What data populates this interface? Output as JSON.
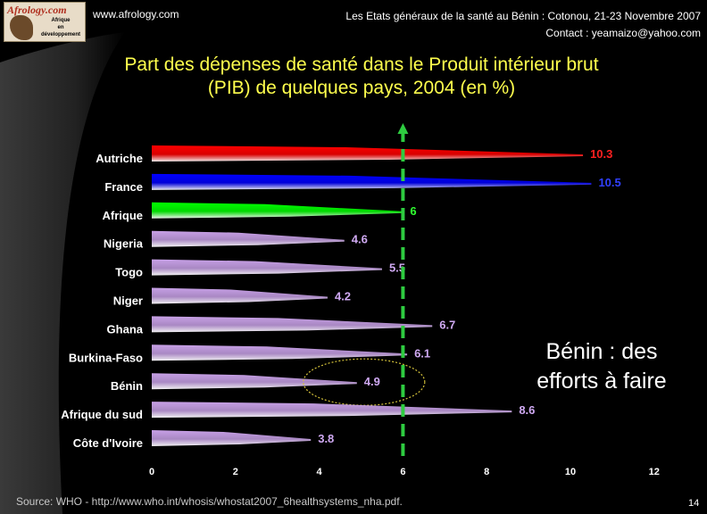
{
  "header": {
    "logo_text": "Afrology.com",
    "logo_sub": [
      "Afrique",
      "en",
      "développement"
    ],
    "site": "www.afrology.com",
    "event": "Les Etats généraux de la santé au Bénin : Cotonou, 21-23 Novembre 2007",
    "contact": "Contact : yeamaizo@yahoo.com"
  },
  "title_line1": "Part des dépenses de santé dans le Produit intérieur brut",
  "title_line2": "(PIB) de quelques pays, 2004 (en %)",
  "callout_line1": "Bénin : des",
  "callout_line2": "efforts à faire",
  "source": "Source: WHO - http://www.who.int/whosis/whostat2007_6healthsystems_nha.pdf.",
  "page_number": "14",
  "chart_data": {
    "type": "bar",
    "orientation": "horizontal",
    "categories": [
      "Autriche",
      "France",
      "Afrique",
      "Nigeria",
      "Togo",
      "Niger",
      "Ghana",
      "Burkina-Faso",
      "Bénin",
      "Afrique du sud",
      "Côte d'Ivoire"
    ],
    "values": [
      10.3,
      10.5,
      6,
      4.6,
      5.5,
      4.2,
      6.7,
      6.1,
      4.9,
      8.6,
      3.8
    ],
    "value_labels": [
      "10.3",
      "10.5",
      "6",
      "4.6",
      "5.5",
      "4.2",
      "6.7",
      "6.1",
      "4.9",
      "8.6",
      "3.8"
    ],
    "bar_colors": [
      "#ff0000",
      "#0000ff",
      "#00ff00",
      "#c7a0e6",
      "#c7a0e6",
      "#c7a0e6",
      "#c7a0e6",
      "#c7a0e6",
      "#c7a0e6",
      "#c7a0e6",
      "#c7a0e6"
    ],
    "label_colors": [
      "#ff2020",
      "#3040ff",
      "#30ff30",
      "#cfa9f2",
      "#cfa9f2",
      "#cfa9f2",
      "#cfa9f2",
      "#cfa9f2",
      "#cfa9f2",
      "#cfa9f2",
      "#cfa9f2"
    ],
    "xticks": [
      "0",
      "2",
      "4",
      "6",
      "8",
      "10",
      "12"
    ],
    "xlim": [
      0,
      12
    ],
    "reference_line": 6,
    "reference_color": "#2ecc40",
    "highlight_category": "Bénin",
    "highlight_color": "#d4c23a",
    "grid": false
  }
}
